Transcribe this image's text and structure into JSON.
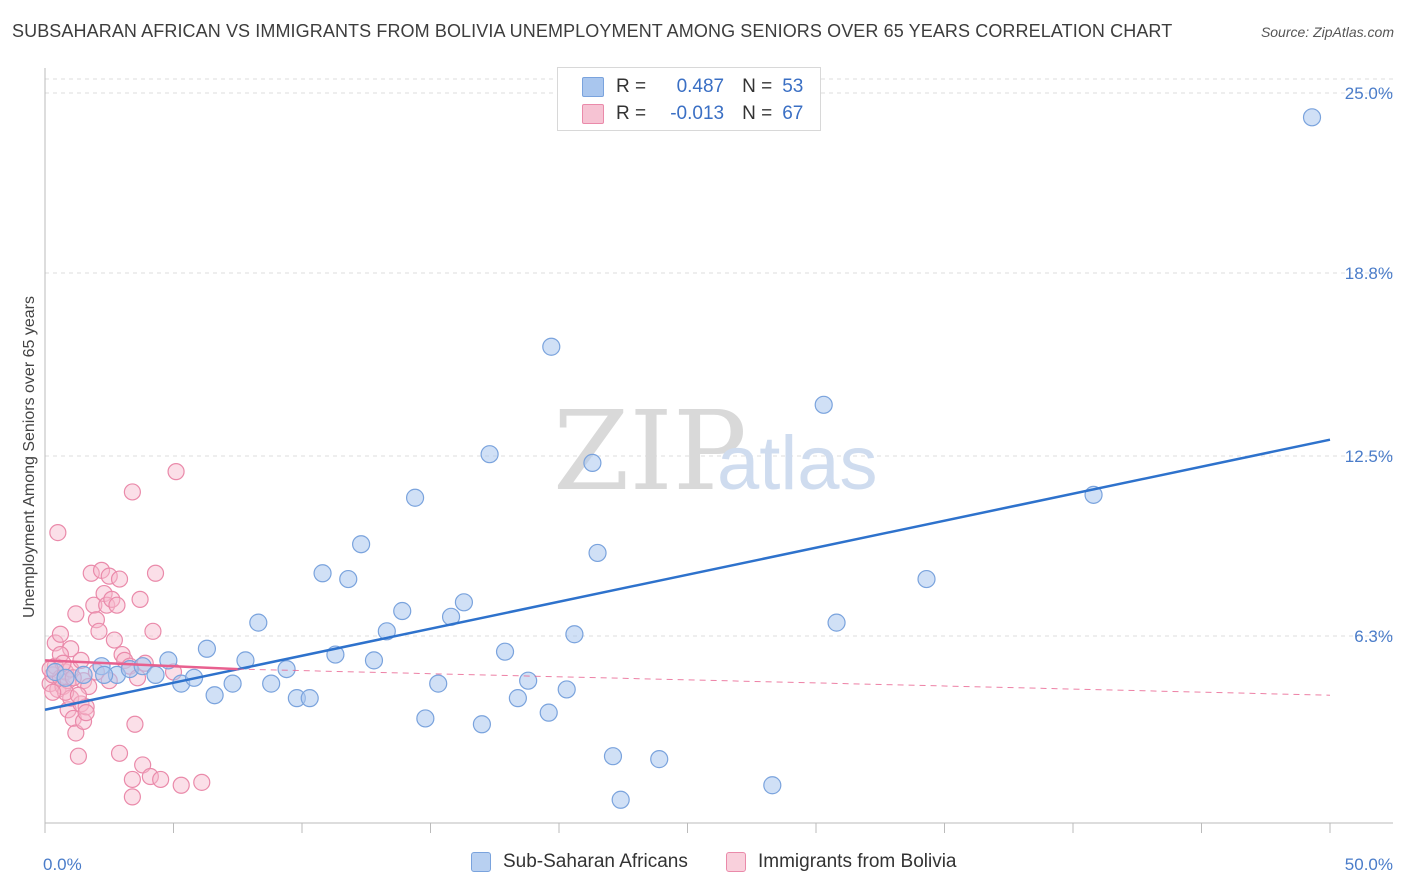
{
  "header": {
    "title": "SUBSAHARAN AFRICAN VS IMMIGRANTS FROM BOLIVIA UNEMPLOYMENT AMONG SENIORS OVER 65 YEARS CORRELATION CHART",
    "source": "Source: ZipAtlas.com"
  },
  "legend": {
    "r_label": "R =",
    "n_label": "N =",
    "series1": {
      "r": "0.487",
      "n": "53"
    },
    "series2": {
      "r": "-0.013",
      "n": "67"
    }
  },
  "watermark": {
    "zip": "ZIP",
    "atlas": "atlas"
  },
  "colors": {
    "blue_fill": "#a9c6ee",
    "blue_stroke": "#7aa3dd",
    "blue_line": "#2e72cc",
    "pink_fill": "#f6b8cb",
    "pink_stroke": "#ea8aaa",
    "pink_line": "#e8608f",
    "axis_text": "#4a7cc9",
    "grid": "#dddddd"
  },
  "chart_data": {
    "type": "scatter",
    "title": "SUBSAHARAN AFRICAN VS IMMIGRANTS FROM BOLIVIA UNEMPLOYMENT AMONG SENIORS OVER 65 YEARS CORRELATION CHART",
    "xlabel": "",
    "ylabel": "Unemployment Among Seniors over 65 years",
    "xlim": [
      0,
      50
    ],
    "ylim": [
      0,
      26
    ],
    "x_tick_labels": [
      "0.0%",
      "50.0%"
    ],
    "y_ticks": [
      6.3,
      12.5,
      18.8,
      25.0
    ],
    "y_tick_labels": [
      "6.3%",
      "12.5%",
      "18.8%",
      "25.0%"
    ],
    "legend_position": "top-center",
    "series": [
      {
        "name": "Sub-Saharan Africans",
        "trend": {
          "x": [
            0,
            50
          ],
          "y": [
            3.9,
            13.2
          ],
          "style": "solid"
        },
        "points": [
          [
            0.4,
            5.2
          ],
          [
            0.8,
            5.0
          ],
          [
            1.5,
            5.1
          ],
          [
            2.2,
            5.4
          ],
          [
            2.8,
            5.1
          ],
          [
            3.3,
            5.3
          ],
          [
            3.8,
            5.4
          ],
          [
            4.3,
            5.1
          ],
          [
            4.8,
            5.6
          ],
          [
            5.3,
            4.8
          ],
          [
            5.8,
            5.0
          ],
          [
            6.3,
            6.0
          ],
          [
            6.6,
            4.4
          ],
          [
            7.3,
            4.8
          ],
          [
            7.8,
            5.6
          ],
          [
            8.3,
            6.9
          ],
          [
            8.8,
            4.8
          ],
          [
            9.4,
            5.3
          ],
          [
            9.8,
            4.3
          ],
          [
            10.3,
            4.3
          ],
          [
            10.8,
            8.6
          ],
          [
            11.3,
            5.8
          ],
          [
            11.8,
            8.4
          ],
          [
            12.3,
            9.6
          ],
          [
            12.8,
            5.6
          ],
          [
            13.3,
            6.6
          ],
          [
            13.9,
            7.3
          ],
          [
            14.4,
            11.2
          ],
          [
            14.8,
            3.6
          ],
          [
            15.3,
            4.8
          ],
          [
            15.8,
            7.1
          ],
          [
            16.3,
            7.6
          ],
          [
            17.0,
            3.4
          ],
          [
            17.3,
            12.7
          ],
          [
            17.9,
            5.9
          ],
          [
            18.4,
            4.3
          ],
          [
            18.8,
            4.9
          ],
          [
            19.6,
            3.8
          ],
          [
            19.7,
            16.4
          ],
          [
            20.3,
            4.6
          ],
          [
            20.6,
            6.5
          ],
          [
            21.3,
            12.4
          ],
          [
            21.5,
            9.3
          ],
          [
            22.1,
            2.3
          ],
          [
            22.4,
            0.8
          ],
          [
            23.9,
            2.2
          ],
          [
            28.3,
            1.3
          ],
          [
            30.3,
            14.4
          ],
          [
            30.8,
            6.9
          ],
          [
            34.3,
            8.4
          ],
          [
            40.8,
            11.3
          ],
          [
            49.3,
            24.3
          ],
          [
            2.3,
            5.1
          ]
        ]
      },
      {
        "name": "Immigrants from Bolivia",
        "trend": {
          "x": [
            0,
            7.5
          ],
          "y": [
            5.6,
            5.3
          ],
          "dashed_x": [
            7.5,
            50
          ],
          "dashed_y": [
            5.3,
            4.4
          ],
          "style": "solid-then-dashed"
        },
        "points": [
          [
            0.2,
            4.8
          ],
          [
            0.3,
            5.1
          ],
          [
            0.4,
            5.4
          ],
          [
            0.5,
            4.6
          ],
          [
            0.6,
            5.0
          ],
          [
            0.7,
            4.7
          ],
          [
            0.8,
            5.2
          ],
          [
            0.9,
            4.9
          ],
          [
            1.0,
            5.3
          ],
          [
            0.4,
            6.2
          ],
          [
            0.6,
            6.5
          ],
          [
            0.5,
            10.0
          ],
          [
            0.9,
            3.9
          ],
          [
            1.0,
            4.3
          ],
          [
            1.1,
            3.6
          ],
          [
            1.2,
            3.1
          ],
          [
            1.3,
            2.3
          ],
          [
            1.4,
            4.1
          ],
          [
            1.0,
            6.0
          ],
          [
            1.2,
            7.2
          ],
          [
            1.4,
            5.6
          ],
          [
            1.5,
            3.5
          ],
          [
            1.6,
            4.0
          ],
          [
            1.8,
            8.6
          ],
          [
            1.9,
            7.5
          ],
          [
            2.0,
            7.0
          ],
          [
            2.1,
            6.6
          ],
          [
            2.2,
            8.7
          ],
          [
            2.3,
            7.9
          ],
          [
            2.4,
            7.5
          ],
          [
            2.5,
            8.5
          ],
          [
            2.6,
            7.7
          ],
          [
            2.7,
            6.3
          ],
          [
            2.8,
            7.5
          ],
          [
            2.9,
            2.4
          ],
          [
            3.0,
            5.8
          ],
          [
            2.9,
            8.4
          ],
          [
            3.1,
            5.6
          ],
          [
            3.3,
            5.4
          ],
          [
            3.4,
            11.4
          ],
          [
            3.5,
            3.4
          ],
          [
            3.6,
            5.0
          ],
          [
            3.7,
            7.7
          ],
          [
            3.8,
            2.0
          ],
          [
            3.9,
            5.5
          ],
          [
            4.1,
            1.6
          ],
          [
            4.3,
            8.6
          ],
          [
            4.5,
            1.5
          ],
          [
            3.4,
            1.5
          ],
          [
            3.4,
            0.9
          ],
          [
            4.2,
            6.6
          ],
          [
            5.1,
            12.1
          ],
          [
            5.3,
            1.3
          ],
          [
            6.1,
            1.4
          ],
          [
            0.6,
            5.8
          ],
          [
            0.8,
            4.5
          ],
          [
            1.5,
            4.9
          ],
          [
            1.7,
            4.7
          ],
          [
            2.0,
            5.2
          ],
          [
            0.3,
            4.5
          ],
          [
            0.7,
            5.5
          ],
          [
            1.1,
            5.0
          ],
          [
            1.3,
            4.4
          ],
          [
            1.6,
            3.8
          ],
          [
            0.2,
            5.3
          ],
          [
            5.0,
            5.2
          ],
          [
            2.5,
            4.9
          ]
        ]
      }
    ]
  }
}
